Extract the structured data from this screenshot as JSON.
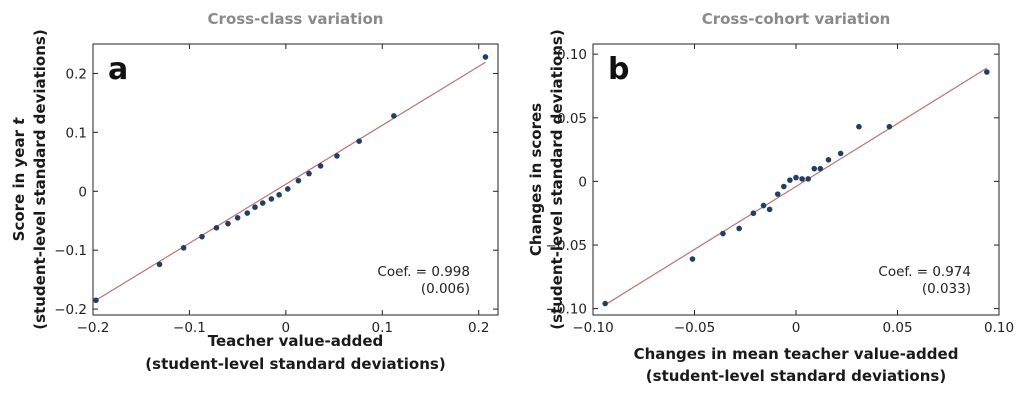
{
  "chart_data": [
    {
      "type": "scatter",
      "panel_label": "a",
      "title": "Cross-class variation",
      "xlabel": [
        "Teacher value-added",
        "(student-level standard deviations)"
      ],
      "ylabel": [
        "Score in year t",
        "(student-level standard deviations)"
      ],
      "xlim": [
        -0.2,
        0.22
      ],
      "ylim": [
        -0.21,
        0.25
      ],
      "xticks": [
        -0.2,
        -0.1,
        0,
        0.1,
        0.2
      ],
      "xtick_labels": [
        "−0.2",
        "−0.1",
        "0",
        "0.1",
        "0.2"
      ],
      "yticks": [
        -0.2,
        -0.1,
        0,
        0.1,
        0.2
      ],
      "ytick_labels": [
        "−0.2",
        "−0.1",
        "0",
        "0.1",
        "0.2"
      ],
      "annotation": [
        "Coef. = 0.998",
        "(0.006)"
      ],
      "fit_line": {
        "x": [
          -0.2,
          0.207
        ],
        "y": [
          -0.188,
          0.219
        ]
      },
      "points": {
        "x": [
          -0.197,
          -0.131,
          -0.106,
          -0.087,
          -0.072,
          -0.06,
          -0.05,
          -0.04,
          -0.032,
          -0.024,
          -0.015,
          -0.007,
          0.002,
          0.013,
          0.024,
          0.036,
          0.053,
          0.076,
          0.112,
          0.207
        ],
        "y": [
          -0.185,
          -0.124,
          -0.096,
          -0.077,
          -0.062,
          -0.055,
          -0.045,
          -0.037,
          -0.027,
          -0.02,
          -0.013,
          -0.006,
          0.004,
          0.018,
          0.03,
          0.043,
          0.06,
          0.085,
          0.128,
          0.228
        ]
      },
      "colors": {
        "points": "#1f3f66",
        "line": "#c07070"
      }
    },
    {
      "type": "scatter",
      "panel_label": "b",
      "title": "Cross-cohort variation",
      "xlabel": [
        "Changes in mean teacher value-added",
        "(student-level standard deviations)"
      ],
      "ylabel": [
        "Changes in scores",
        "(student-level standard deviations)"
      ],
      "xlim": [
        -0.1,
        0.1
      ],
      "ylim": [
        -0.105,
        0.108
      ],
      "xticks": [
        -0.1,
        -0.05,
        0,
        0.05,
        0.1
      ],
      "xtick_labels": [
        "−0.10",
        "−0.05",
        "0",
        "0.05",
        "0.10"
      ],
      "yticks": [
        -0.1,
        -0.05,
        0,
        0.05,
        0.1
      ],
      "ytick_labels": [
        "−0.10",
        "−0.05",
        "0",
        "0.05",
        "0.10"
      ],
      "annotation": [
        "Coef. = 0.974",
        "(0.033)"
      ],
      "fit_line": {
        "x": [
          -0.094,
          0.094
        ],
        "y": [
          -0.097,
          0.089
        ]
      },
      "points": {
        "x": [
          -0.094,
          -0.051,
          -0.036,
          -0.028,
          -0.021,
          -0.016,
          -0.013,
          -0.009,
          -0.006,
          -0.003,
          0.0,
          0.003,
          0.006,
          0.009,
          0.012,
          0.016,
          0.022,
          0.031,
          0.046,
          0.094
        ],
        "y": [
          -0.096,
          -0.061,
          -0.041,
          -0.037,
          -0.025,
          -0.019,
          -0.022,
          -0.01,
          -0.004,
          0.001,
          0.003,
          0.002,
          0.002,
          0.01,
          0.01,
          0.017,
          0.022,
          0.043,
          0.043,
          0.086
        ]
      },
      "colors": {
        "points": "#1f3f66",
        "line": "#c07070"
      }
    }
  ]
}
